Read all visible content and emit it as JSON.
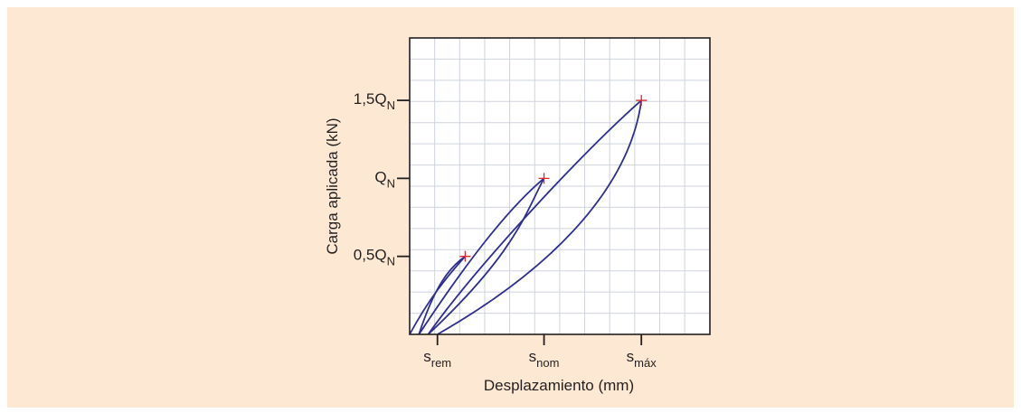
{
  "chart_data": {
    "type": "line",
    "xlabel": "Desplazamiento (mm)",
    "ylabel": "Carga aplicada (kN)",
    "xlim": [
      0,
      1.2
    ],
    "ylim": [
      0,
      1.9
    ],
    "grid": true,
    "x_ticks": [
      {
        "value": 0.111,
        "base": "s",
        "sub": "rem"
      },
      {
        "value": 0.537,
        "base": "s",
        "sub": "nom"
      },
      {
        "value": 0.926,
        "base": "s",
        "sub": "máx"
      }
    ],
    "y_ticks": [
      {
        "value": 0.5,
        "base": "0,5Q",
        "sub": "N"
      },
      {
        "value": 1.0,
        "base": "Q",
        "sub": "N"
      },
      {
        "value": 1.5,
        "base": "1,5Q",
        "sub": "N"
      }
    ],
    "peak_markers": [
      {
        "x": 0.222,
        "y": 0.5
      },
      {
        "x": 0.537,
        "y": 1.0
      },
      {
        "x": 0.926,
        "y": 1.5
      }
    ],
    "curves": [
      {
        "name": "",
        "points": [
          [
            0,
            0
          ],
          [
            0.074,
            0.22
          ],
          [
            0.148,
            0.37
          ],
          [
            0.222,
            0.5
          ]
        ]
      },
      {
        "name": "",
        "points": [
          [
            0.222,
            0.5
          ],
          [
            0.159,
            0.43
          ],
          [
            0.1,
            0.31
          ],
          [
            0.037,
            0
          ]
        ]
      },
      {
        "name": "",
        "points": [
          [
            0.037,
            0
          ],
          [
            0.222,
            0.45
          ],
          [
            0.389,
            0.8
          ],
          [
            0.537,
            1.0
          ]
        ]
      },
      {
        "name": "",
        "points": [
          [
            0.537,
            1.0
          ],
          [
            0.463,
            0.78
          ],
          [
            0.426,
            0.53
          ],
          [
            0.074,
            0
          ]
        ]
      },
      {
        "name": "",
        "points": [
          [
            0.074,
            0
          ],
          [
            0.259,
            0.42
          ],
          [
            0.685,
            1.16
          ],
          [
            0.926,
            1.5
          ]
        ]
      },
      {
        "name": "",
        "points": [
          [
            0.926,
            1.5
          ],
          [
            0.889,
            1.05
          ],
          [
            0.667,
            0.51
          ],
          [
            0.111,
            0
          ]
        ]
      }
    ],
    "colors": {
      "curve": "#2e2f8f",
      "marker": "#e0262b",
      "grid": "#cfd3dc",
      "axis": "#231f20",
      "background": "#fde9d3",
      "plot_background": "#ffffff"
    }
  }
}
